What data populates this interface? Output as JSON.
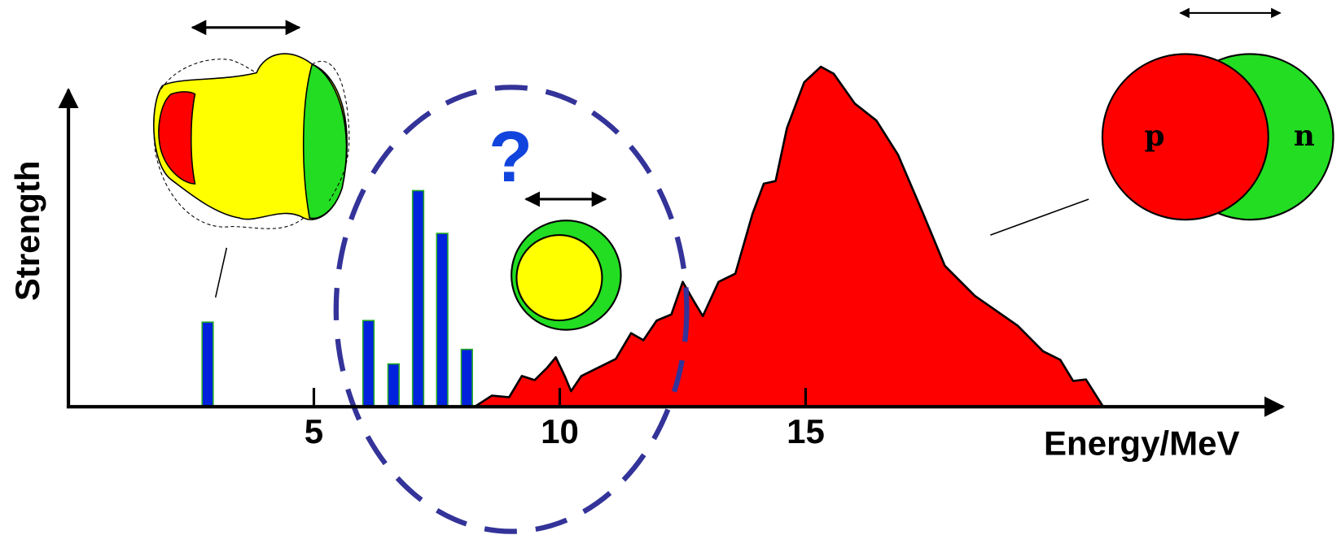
{
  "chart_data": {
    "type": "combo",
    "xlabel": "Energy/MeV",
    "ylabel": "Strength",
    "xlim": [
      0,
      24.7
    ],
    "ylim": [
      0,
      110
    ],
    "xticks": [
      5,
      10,
      15
    ],
    "annotations": [
      "?",
      "p",
      "n"
    ],
    "series": [
      {
        "type": "bar",
        "color": "#0022dd",
        "x": [
          2.84,
          6.11,
          6.62,
          7.12,
          7.61,
          8.11
        ],
        "values": [
          26.7,
          27.2,
          13.5,
          68.2,
          54.7,
          18.1
        ]
      },
      {
        "type": "area",
        "color": "#ff0000",
        "x": [
          8.27,
          8.62,
          8.97,
          9.23,
          9.49,
          9.75,
          9.92,
          10.1,
          10.23,
          10.44,
          10.79,
          11.14,
          11.45,
          11.7,
          11.97,
          12.27,
          12.5,
          12.7,
          12.91,
          13.23,
          13.57,
          13.92,
          14.15,
          14.39,
          14.62,
          14.97,
          15.31,
          15.57,
          16.0,
          16.44,
          16.88,
          17.4,
          17.83,
          18.44,
          19.31,
          19.83,
          20.18,
          20.44,
          20.7,
          21.05
        ],
        "values": [
          0,
          3.5,
          3.0,
          9.7,
          8.4,
          12.4,
          15.6,
          9.7,
          4.9,
          9.7,
          12.4,
          15.1,
          23.2,
          21.0,
          27.2,
          29.1,
          39.4,
          34.0,
          28.6,
          39.4,
          42.0,
          60.9,
          70.4,
          71.2,
          87.9,
          102.4,
          107.3,
          105.1,
          95.7,
          90.3,
          79.5,
          60.6,
          44.5,
          35.0,
          25.6,
          17.5,
          14.8,
          8.1,
          8.6,
          0
        ]
      }
    ]
  }
}
